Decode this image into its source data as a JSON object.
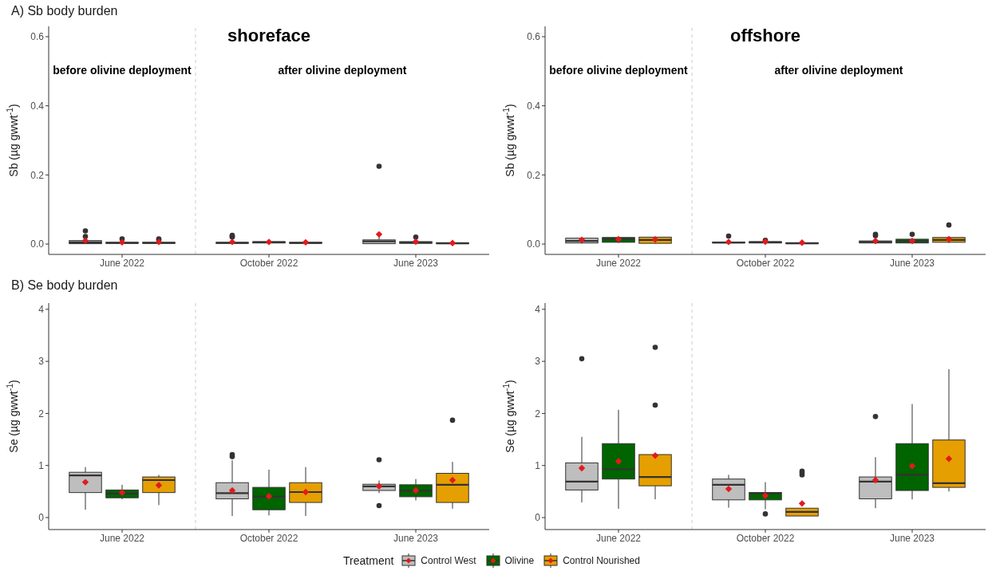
{
  "chart_data": [
    {
      "type": "box",
      "title": "A) Sb body burden",
      "subtitle": "shoreface",
      "ylabel": "Sb (µg gwwt$^{-1}$)",
      "categories": [
        "June 2022",
        "October 2022",
        "June 2023"
      ],
      "ylim": [
        -0.03,
        0.63
      ],
      "yticks": [
        {
          "value": 0,
          "label": "0.0"
        },
        0.2,
        0.4,
        0.6
      ],
      "annotations": [
        "before olivine deployment",
        "after olivine deployment"
      ],
      "series": [
        {
          "color": "#bebebe",
          "boxes": [
            {
              "low": 0,
              "q1": 0.001,
              "median": 0.005,
              "q3": 0.01,
              "high": 0.012,
              "mean": 0.01,
              "outliers": [
                0.022,
                0.038
              ]
            },
            {
              "low": 0,
              "q1": 0.002,
              "median": 0.003,
              "q3": 0.005,
              "high": 0.008,
              "mean": 0.006,
              "outliers": [
                0.02,
                0.022,
                0.025
              ]
            },
            {
              "low": 0,
              "q1": 0.001,
              "median": 0.008,
              "q3": 0.012,
              "high": 0.025,
              "mean": 0.028,
              "outliers": [
                0.225
              ]
            }
          ]
        },
        {
          "color": "#006400",
          "boxes": [
            {
              "low": 0,
              "q1": 0.002,
              "median": 0.003,
              "q3": 0.005,
              "high": 0.006,
              "mean": 0.005,
              "outliers": [
                0.015
              ]
            },
            {
              "low": 0.001,
              "q1": 0.003,
              "median": 0.005,
              "q3": 0.007,
              "high": 0.008,
              "mean": 0.006
            },
            {
              "low": 0,
              "q1": 0.002,
              "median": 0.004,
              "q3": 0.007,
              "high": 0.01,
              "mean": 0.007,
              "outliers": [
                0.02
              ]
            }
          ]
        },
        {
          "color": "#e69f00",
          "boxes": [
            {
              "low": 0,
              "q1": 0.002,
              "median": 0.003,
              "q3": 0.005,
              "high": 0.007,
              "mean": 0.006,
              "outliers": [
                0.012,
                0.015
              ]
            },
            {
              "low": 0,
              "q1": 0.002,
              "median": 0.003,
              "q3": 0.005,
              "high": 0.006,
              "mean": 0.005
            },
            {
              "low": 0,
              "q1": 0.001,
              "median": 0.002,
              "q3": 0.004,
              "high": 0.005,
              "mean": 0.003
            }
          ]
        }
      ]
    },
    {
      "type": "box",
      "subtitle": "offshore",
      "ylabel": "Sb (µg gwwt$^{-1}$)",
      "categories": [
        "June 2022",
        "October 2022",
        "June 2023"
      ],
      "ylim": [
        -0.03,
        0.63
      ],
      "yticks": [
        {
          "value": 0,
          "label": "0.0"
        },
        0.2,
        0.4,
        0.6
      ],
      "annotations": [
        "before olivine deployment",
        "after olivine deployment"
      ],
      "series": [
        {
          "color": "#bebebe",
          "boxes": [
            {
              "low": 0.001,
              "q1": 0.003,
              "median": 0.009,
              "q3": 0.017,
              "high": 0.018,
              "mean": 0.012
            },
            {
              "low": 0.001,
              "q1": 0.003,
              "median": 0.004,
              "q3": 0.006,
              "high": 0.008,
              "mean": 0.006,
              "outliers": [
                0.023
              ]
            },
            {
              "low": 0.001,
              "q1": 0.003,
              "median": 0.006,
              "q3": 0.009,
              "high": 0.012,
              "mean": 0.009,
              "outliers": [
                0.024,
                0.028
              ]
            }
          ]
        },
        {
          "color": "#006400",
          "boxes": [
            {
              "low": 0.003,
              "q1": 0.005,
              "median": 0.014,
              "q3": 0.019,
              "high": 0.02,
              "mean": 0.014
            },
            {
              "low": 0.002,
              "q1": 0.003,
              "median": 0.005,
              "q3": 0.007,
              "high": 0.009,
              "mean": 0.007,
              "outliers": [
                0.011
              ]
            },
            {
              "low": 0.001,
              "q1": 0.003,
              "median": 0.008,
              "q3": 0.014,
              "high": 0.016,
              "mean": 0.009,
              "outliers": [
                0.028
              ]
            }
          ]
        },
        {
          "color": "#e69f00",
          "boxes": [
            {
              "low": 0.001,
              "q1": 0.002,
              "median": 0.012,
              "q3": 0.02,
              "high": 0.022,
              "mean": 0.013
            },
            {
              "low": 0,
              "q1": 0.001,
              "median": 0.002,
              "q3": 0.004,
              "high": 0.005,
              "mean": 0.004
            },
            {
              "low": 0.003,
              "q1": 0.005,
              "median": 0.012,
              "q3": 0.019,
              "high": 0.022,
              "mean": 0.014,
              "outliers": [
                0.055
              ]
            }
          ]
        }
      ]
    },
    {
      "type": "box",
      "title": "B) Se body burden",
      "ylabel": "Se (µg gwwt$^{-1}$)",
      "categories": [
        "June 2022",
        "October 2022",
        "June 2023"
      ],
      "ylim": [
        -0.23,
        4.12
      ],
      "yticks": [
        0,
        1,
        2,
        3,
        4
      ],
      "series": [
        {
          "color": "#bebebe",
          "boxes": [
            {
              "low": 0.15,
              "q1": 0.48,
              "median": 0.81,
              "q3": 0.87,
              "high": 0.97,
              "mean": 0.68
            },
            {
              "low": 0.03,
              "q1": 0.36,
              "median": 0.47,
              "q3": 0.67,
              "high": 1.1,
              "mean": 0.52,
              "outliers": [
                1.17,
                1.21
              ]
            },
            {
              "low": 0.47,
              "q1": 0.52,
              "median": 0.6,
              "q3": 0.64,
              "high": 0.71,
              "mean": 0.6,
              "outliers": [
                0.23,
                1.11
              ]
            }
          ]
        },
        {
          "color": "#006400",
          "boxes": [
            {
              "low": 0.35,
              "q1": 0.38,
              "median": 0.46,
              "q3": 0.53,
              "high": 0.63,
              "mean": 0.48
            },
            {
              "low": 0.04,
              "q1": 0.15,
              "median": 0.4,
              "q3": 0.58,
              "high": 0.92,
              "mean": 0.41
            },
            {
              "low": 0.33,
              "q1": 0.4,
              "median": 0.52,
              "q3": 0.63,
              "high": 0.74,
              "mean": 0.52
            }
          ]
        },
        {
          "color": "#e69f00",
          "boxes": [
            {
              "low": 0.24,
              "q1": 0.48,
              "median": 0.72,
              "q3": 0.78,
              "high": 0.82,
              "mean": 0.62
            },
            {
              "low": 0.03,
              "q1": 0.29,
              "median": 0.49,
              "q3": 0.67,
              "high": 0.97,
              "mean": 0.49
            },
            {
              "low": 0.17,
              "q1": 0.29,
              "median": 0.63,
              "q3": 0.85,
              "high": 1.07,
              "mean": 0.72,
              "outliers": [
                1.87
              ]
            }
          ]
        }
      ]
    },
    {
      "type": "box",
      "ylabel": "Se (µg gwwt$^{-1}$)",
      "categories": [
        "June 2022",
        "October 2022",
        "June 2023"
      ],
      "ylim": [
        -0.23,
        4.12
      ],
      "yticks": [
        0,
        1,
        2,
        3,
        4
      ],
      "legend": "bottom",
      "legend_title": "Treatment",
      "series": [
        {
          "name": "Control West",
          "color": "#bebebe",
          "boxes": [
            {
              "low": 0.29,
              "q1": 0.53,
              "median": 0.69,
              "q3": 1.05,
              "high": 1.55,
              "mean": 0.95,
              "outliers": [
                3.05
              ]
            },
            {
              "low": 0.19,
              "q1": 0.34,
              "median": 0.63,
              "q3": 0.74,
              "high": 0.82,
              "mean": 0.55
            },
            {
              "low": 0.18,
              "q1": 0.36,
              "median": 0.69,
              "q3": 0.78,
              "high": 1.16,
              "mean": 0.72,
              "outliers": [
                1.94
              ]
            }
          ]
        },
        {
          "name": "Olivine",
          "color": "#006400",
          "boxes": [
            {
              "low": 0.17,
              "q1": 0.74,
              "median": 0.93,
              "q3": 1.42,
              "high": 2.07,
              "mean": 1.08
            },
            {
              "low": 0.16,
              "q1": 0.34,
              "median": 0.47,
              "q3": 0.48,
              "high": 0.68,
              "mean": 0.42,
              "outliers": [
                0.07
              ]
            },
            {
              "low": 0.35,
              "q1": 0.52,
              "median": 0.82,
              "q3": 1.42,
              "high": 2.18,
              "mean": 0.99
            }
          ]
        },
        {
          "name": "Control Nourished",
          "color": "#e69f00",
          "boxes": [
            {
              "low": 0.35,
              "q1": 0.61,
              "median": 0.78,
              "q3": 1.21,
              "high": 1.21,
              "mean": 1.19,
              "outliers": [
                2.16,
                3.27
              ]
            },
            {
              "low": 0.03,
              "q1": 0.03,
              "median": 0.11,
              "q3": 0.18,
              "high": 0.18,
              "mean": 0.27,
              "outliers": [
                0.82,
                0.86,
                0.89
              ]
            },
            {
              "low": 0.5,
              "q1": 0.58,
              "median": 0.66,
              "q3": 1.49,
              "high": 2.85,
              "mean": 1.13
            }
          ]
        }
      ]
    }
  ]
}
